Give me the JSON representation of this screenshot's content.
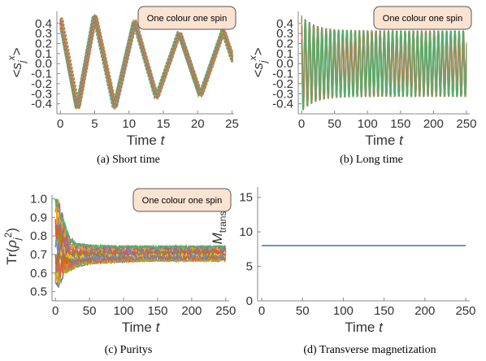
{
  "colors": {
    "legend_fill": "#fbe3d2",
    "legend_border": "#555555",
    "axis": "#888888",
    "text": "#333333",
    "line_d": "#5b84b8",
    "palette": [
      "#5e81b5",
      "#e19c24",
      "#8fb032",
      "#eb6235",
      "#8778b3",
      "#c56e1a",
      "#5d9ec7",
      "#ffbf00",
      "#a5609d",
      "#929600",
      "#e95536",
      "#6685d9",
      "#f89f13",
      "#bc5b80",
      "#47b66d"
    ]
  },
  "chart_data": [
    {
      "type": "line",
      "panel": "a",
      "caption": "(a) Short time",
      "legend": "One colour one spin",
      "xlabel": "Time t",
      "ylabel": "<s_j^x>",
      "xlim": [
        -0.5,
        25.3
      ],
      "ylim": [
        -0.5,
        0.52
      ],
      "xticks": [
        "0",
        "5",
        "10",
        "15",
        "20",
        "25"
      ],
      "yticks": [
        "-0.4",
        "-0.3",
        "-0.2",
        "-0.1",
        "0.0",
        "0.1",
        "0.2",
        "0.3",
        "0.4"
      ],
      "curve": {
        "x": [
          0,
          2.5,
          5,
          7.9,
          10.8,
          14,
          17.3,
          20.4,
          23.7,
          25.2
        ],
        "y": [
          0.45,
          -0.45,
          0.48,
          -0.44,
          0.42,
          -0.34,
          0.31,
          -0.32,
          0.33,
          0.02
        ]
      },
      "n_series": 15
    },
    {
      "type": "line",
      "panel": "b",
      "caption": "(b) Long time",
      "legend": "One colour one spin",
      "xlabel": "Time t",
      "ylabel": "<s_j^x>",
      "xlim": [
        -5,
        255
      ],
      "ylim": [
        -0.5,
        0.52
      ],
      "xticks": [
        "0",
        "50",
        "100",
        "150",
        "200",
        "250"
      ],
      "yticks": [
        "-0.4",
        "-0.3",
        "-0.2",
        "-0.1",
        "0.0",
        "0.1",
        "0.2",
        "0.3",
        "0.4"
      ],
      "oscillation": {
        "amplitude_start": 0.48,
        "amplitude_end": 0.33,
        "period": 6.3
      },
      "n_series": 15
    },
    {
      "type": "line",
      "panel": "c",
      "caption": "(c) Puritys",
      "legend": "One colour one spin",
      "xlabel": "Time t",
      "ylabel": "Tr(ρ_j^2)",
      "xlim": [
        -5,
        255
      ],
      "ylim": [
        0.45,
        1.02
      ],
      "xticks": [
        "0",
        "50",
        "100",
        "150",
        "200",
        "250"
      ],
      "yticks": [
        "0.5",
        "0.6",
        "0.7",
        "0.8",
        "0.9",
        "1.0"
      ],
      "envelope": {
        "x": [
          0,
          5,
          10,
          15,
          20,
          30,
          50,
          100,
          150,
          200,
          250
        ],
        "upper": [
          1.0,
          1.0,
          0.92,
          0.85,
          0.8,
          0.76,
          0.75,
          0.745,
          0.745,
          0.745,
          0.745
        ],
        "lower": [
          0.55,
          0.52,
          0.57,
          0.6,
          0.61,
          0.63,
          0.65,
          0.66,
          0.665,
          0.665,
          0.665
        ]
      },
      "n_series": 15
    },
    {
      "type": "line",
      "panel": "d",
      "caption": "(d) Transverse magnetization",
      "legend": "",
      "xlabel": "Time t",
      "ylabel": "M_trans",
      "xlim": [
        -5,
        255
      ],
      "ylim": [
        0,
        16.5
      ],
      "xticks": [
        "0",
        "50",
        "100",
        "150",
        "200",
        "250"
      ],
      "yticks": [
        "0",
        "5",
        "10",
        "15"
      ],
      "series": [
        {
          "x": [
            0,
            250
          ],
          "y": [
            8,
            8
          ]
        }
      ]
    }
  ]
}
